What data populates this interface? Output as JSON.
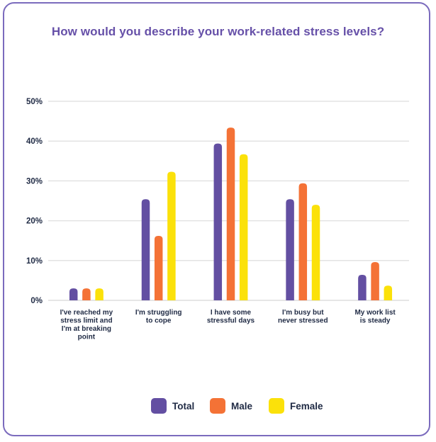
{
  "chart_data": {
    "type": "bar",
    "title": "How would you describe your work-related stress levels?",
    "xlabel": "",
    "ylabel": "",
    "ylim": [
      0,
      50
    ],
    "yticks": [
      "0%",
      "10%",
      "20%",
      "30%",
      "40%",
      "50%"
    ],
    "ytick_values": [
      0,
      10,
      20,
      30,
      40,
      50
    ],
    "grid": true,
    "legend_position": "bottom",
    "categories": [
      [
        "I've reached my",
        "stress limit and",
        "I'm at breaking",
        "point"
      ],
      [
        "I'm struggling",
        "to cope"
      ],
      [
        "I have some",
        "stressful days"
      ],
      [
        "I'm busy but",
        "never stressed"
      ],
      [
        "My work list",
        "is steady"
      ]
    ],
    "series": [
      {
        "name": "Total",
        "color": "#634fa2",
        "values": [
          3.0,
          25.4,
          39.4,
          25.4,
          6.4
        ]
      },
      {
        "name": "Male",
        "color": "#f47236",
        "values": [
          3.0,
          16.2,
          43.4,
          29.4,
          9.6
        ]
      },
      {
        "name": "Female",
        "color": "#fbe10a",
        "values": [
          3.0,
          32.3,
          36.7,
          24.0,
          3.7
        ]
      }
    ]
  }
}
